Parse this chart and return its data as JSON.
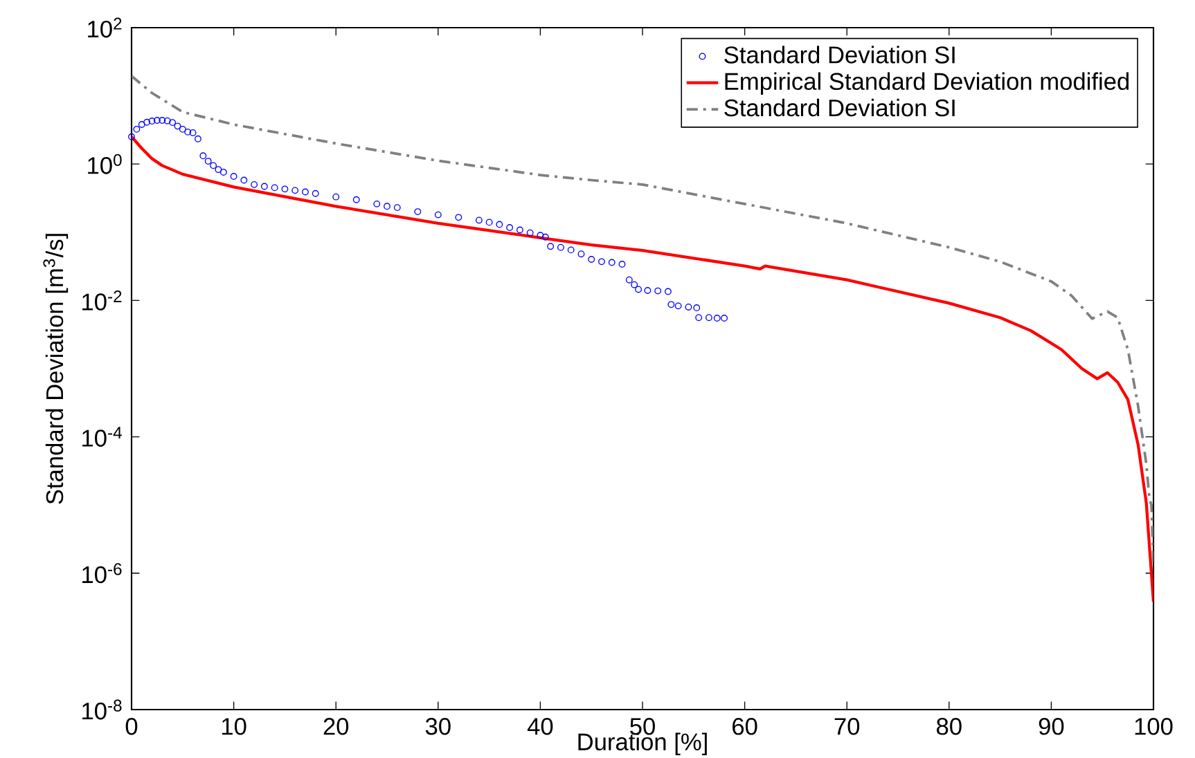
{
  "chart_data": {
    "type": "line",
    "xlabel": "Duration [%]",
    "ylabel": "Standard Deviation [m$^{3}$/s]",
    "log": "y",
    "grid": false,
    "legend": "top right",
    "xlim": [
      0,
      100
    ],
    "ylim": [
      1e-08,
      100
    ],
    "xticks": [
      0,
      10,
      20,
      30,
      40,
      50,
      60,
      70,
      80,
      90,
      100
    ],
    "yticks": [
      {
        "value": 1e-08,
        "label": "10$^{-8}$"
      },
      {
        "value": 1e-06,
        "label": "10$^{-6}$"
      },
      {
        "value": 0.0001,
        "label": "10$^{-4}$"
      },
      {
        "value": 0.01,
        "label": "10$^{-2}$"
      },
      {
        "value": 1,
        "label": "10$^{0}$"
      },
      {
        "value": 100,
        "label": "10$^{2}$"
      }
    ],
    "series": [
      {
        "name": "Standard Deviation SI",
        "type": "scatter",
        "marker": "circle",
        "color": "#0000ff",
        "x": [
          0,
          0.5,
          1,
          1.5,
          2,
          2.5,
          3,
          3.5,
          4,
          4.5,
          5,
          5.5,
          6,
          6.5,
          7,
          7.5,
          8,
          8.5,
          9,
          10,
          11,
          12,
          13,
          14,
          15,
          16,
          17,
          18,
          20,
          22,
          24,
          25,
          26,
          28,
          30,
          32,
          34,
          35,
          36,
          37,
          38,
          39,
          40,
          40.5,
          41,
          42,
          43,
          44,
          45,
          46,
          47,
          48,
          48.7,
          49.2,
          49.6,
          50.5,
          51.5,
          52.5,
          52.8,
          53.5,
          54.5,
          55.3,
          55.5,
          56.5,
          57.3,
          58
        ],
        "values": [
          2.51,
          3.24,
          3.8,
          4.1,
          4.27,
          4.37,
          4.37,
          4.3,
          4.07,
          3.6,
          3.24,
          2.95,
          2.88,
          2.34,
          1.32,
          1.1,
          0.95,
          0.83,
          0.76,
          0.66,
          0.58,
          0.5,
          0.47,
          0.45,
          0.43,
          0.41,
          0.39,
          0.37,
          0.33,
          0.3,
          0.26,
          0.24,
          0.23,
          0.2,
          0.18,
          0.165,
          0.15,
          0.14,
          0.13,
          0.117,
          0.108,
          0.098,
          0.09,
          0.085,
          0.062,
          0.06,
          0.055,
          0.048,
          0.04,
          0.037,
          0.036,
          0.034,
          0.02,
          0.017,
          0.0145,
          0.014,
          0.0138,
          0.0135,
          0.0087,
          0.0083,
          0.008,
          0.0078,
          0.0056,
          0.0056,
          0.0055,
          0.0055
        ]
      },
      {
        "name": "Empirical Standard Deviation modified",
        "line_style": "solid",
        "color": "#ff0000",
        "x": [
          0,
          1,
          2,
          3,
          5,
          10,
          20,
          30,
          40,
          45,
          50,
          60,
          61.5,
          62,
          70,
          80,
          85,
          88,
          91,
          93,
          94.5,
          95.5,
          96.5,
          97.5,
          98.5,
          99.3,
          100
        ],
        "values": [
          2.51,
          1.7,
          1.2,
          0.95,
          0.71,
          0.46,
          0.24,
          0.135,
          0.083,
          0.065,
          0.054,
          0.032,
          0.029,
          0.032,
          0.02,
          0.0091,
          0.0056,
          0.0036,
          0.0019,
          0.001,
          0.00071,
          0.00087,
          0.00063,
          0.00035,
          7.6e-05,
          1.07e-05,
          3.8e-07
        ]
      },
      {
        "name": "Standard Deviation SI",
        "line_style": "dashdot",
        "color": "#808080",
        "x": [
          0,
          2,
          5,
          10,
          20,
          30,
          40,
          45,
          50,
          60,
          70,
          80,
          85,
          90,
          92,
          94,
          95.5,
          96.5,
          97.5,
          98.5,
          99.3,
          99.6,
          99.8,
          100
        ],
        "values": [
          19.5,
          11,
          5.8,
          3.8,
          2,
          1.12,
          0.69,
          0.58,
          0.5,
          0.26,
          0.135,
          0.06,
          0.037,
          0.019,
          0.0117,
          0.0054,
          0.0069,
          0.0056,
          0.0019,
          0.00028,
          4e-05,
          1.26e-05,
          1e-05,
          1.26e-06
        ]
      }
    ]
  }
}
